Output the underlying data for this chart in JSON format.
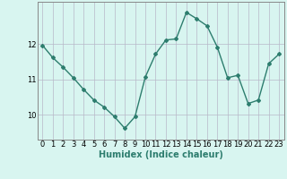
{
  "x": [
    0,
    1,
    2,
    3,
    4,
    5,
    6,
    7,
    8,
    9,
    10,
    11,
    12,
    13,
    14,
    15,
    16,
    17,
    18,
    19,
    20,
    21,
    22,
    23
  ],
  "y": [
    11.97,
    11.62,
    11.35,
    11.05,
    10.72,
    10.42,
    10.22,
    9.95,
    9.62,
    9.95,
    11.07,
    11.72,
    12.12,
    12.15,
    12.9,
    12.72,
    12.52,
    11.92,
    11.05,
    11.12,
    10.32,
    10.42,
    11.45,
    11.72
  ],
  "line_color": "#2d7d6e",
  "marker": "D",
  "marker_size": 2,
  "bg_color": "#d8f5f0",
  "xlabel": "Humidex (Indice chaleur)",
  "yticks": [
    10,
    11,
    12
  ],
  "xticks": [
    0,
    1,
    2,
    3,
    4,
    5,
    6,
    7,
    8,
    9,
    10,
    11,
    12,
    13,
    14,
    15,
    16,
    17,
    18,
    19,
    20,
    21,
    22,
    23
  ],
  "ylim": [
    9.3,
    13.2
  ],
  "xlim": [
    -0.5,
    23.5
  ],
  "tick_fontsize": 6,
  "label_fontsize": 7,
  "line_width": 1.0
}
